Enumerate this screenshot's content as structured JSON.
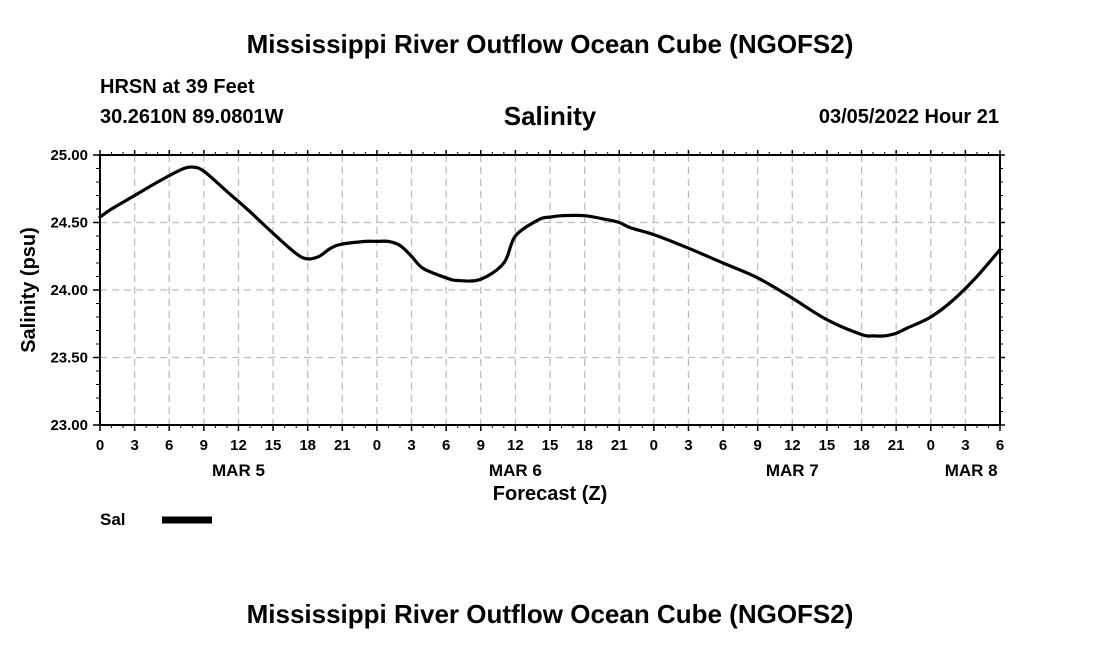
{
  "header": {
    "title": "Mississippi River Outflow Ocean Cube (NGOFS2)",
    "station": "HRSN at 39 Feet",
    "coordinates": "30.2610N  89.0801W",
    "datetime": "03/05/2022 Hour 21"
  },
  "footer": {
    "title": "Mississippi River Outflow Ocean Cube (NGOFS2)"
  },
  "chart_data": {
    "type": "line",
    "title": "Salinity",
    "xlabel": "Forecast (Z)",
    "ylabel": "Salinity (psu)",
    "ylim": [
      23.0,
      25.0
    ],
    "xlim_hours": [
      0,
      78
    ],
    "grid": true,
    "legend_position": "bottom-left",
    "x_tick_labels": [
      "0",
      "3",
      "6",
      "9",
      "12",
      "15",
      "18",
      "21",
      "0",
      "3",
      "6",
      "9",
      "12",
      "15",
      "18",
      "21",
      "0",
      "3",
      "6",
      "9",
      "12",
      "15",
      "18",
      "21",
      "0",
      "3",
      "6"
    ],
    "y_tick_labels": [
      "23.00",
      "23.50",
      "24.00",
      "24.50",
      "25.00"
    ],
    "date_labels": [
      {
        "label": "MAR 5",
        "hour": 12
      },
      {
        "label": "MAR 6",
        "hour": 36
      },
      {
        "label": "MAR 7",
        "hour": 60
      },
      {
        "label": "MAR 8",
        "hour": 75.5
      }
    ],
    "series": [
      {
        "name": "Sal",
        "color": "#000000",
        "x_hours": [
          0,
          1,
          3,
          5,
          7,
          8,
          9,
          11,
          13,
          15,
          17,
          18,
          19,
          20,
          21,
          23,
          24,
          25,
          26,
          27,
          28,
          30,
          31,
          33,
          35,
          36,
          38,
          39,
          40,
          42,
          44,
          45,
          46,
          48,
          51,
          54,
          57,
          60,
          63,
          66,
          67,
          68,
          69,
          70,
          72,
          74,
          76,
          78
        ],
        "values": [
          24.54,
          24.6,
          24.7,
          24.8,
          24.89,
          24.91,
          24.88,
          24.73,
          24.58,
          24.42,
          24.27,
          24.23,
          24.25,
          24.31,
          24.34,
          24.36,
          24.36,
          24.36,
          24.33,
          24.25,
          24.16,
          24.09,
          24.07,
          24.08,
          24.2,
          24.4,
          24.52,
          24.54,
          24.55,
          24.55,
          24.52,
          24.5,
          24.46,
          24.41,
          24.31,
          24.2,
          24.09,
          23.94,
          23.78,
          23.67,
          23.66,
          23.66,
          23.68,
          23.72,
          23.8,
          23.93,
          24.1,
          24.3
        ]
      }
    ]
  }
}
